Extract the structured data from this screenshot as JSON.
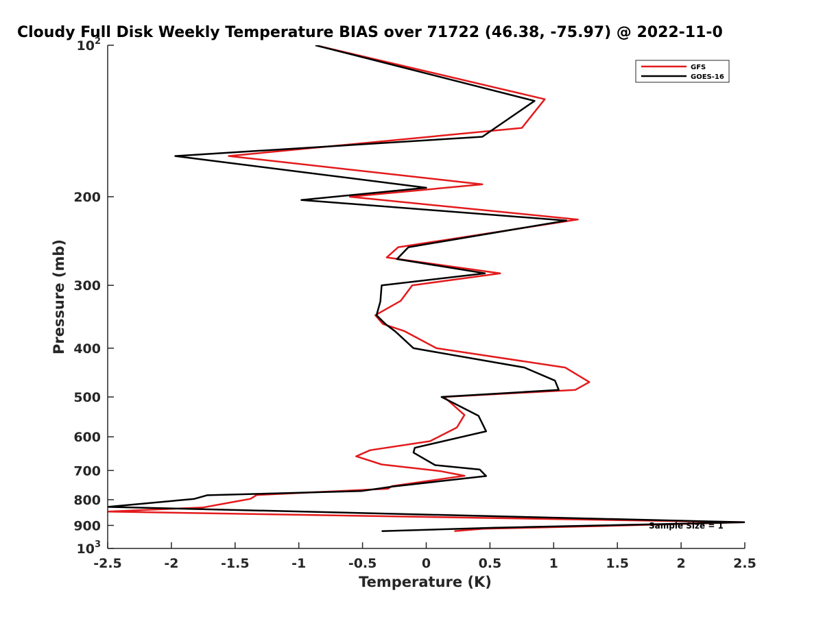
{
  "chart_data": {
    "type": "line",
    "title": "Cloudy Full Disk Weekly Temperature BIAS over 71722 (46.38, -75.97) @ 2022-11-0",
    "xlabel": "Temperature (K)",
    "ylabel": "Pressure (mb)",
    "xlim": [
      -2.5,
      2.5
    ],
    "ylim": [
      100,
      1000
    ],
    "yscale": "log",
    "y_reversed": true,
    "grid": false,
    "legend_position": "top-right",
    "x_ticks": [
      "-2.5",
      "-2",
      "-1.5",
      "-1",
      "-0.5",
      "0",
      "0.5",
      "1",
      "1.5",
      "2",
      "2.5"
    ],
    "y_ticks": [
      {
        "value": 100,
        "base": "10",
        "exp": "2"
      },
      {
        "value": 200,
        "label": "200"
      },
      {
        "value": 300,
        "label": "300"
      },
      {
        "value": 400,
        "label": "400"
      },
      {
        "value": 500,
        "label": "500"
      },
      {
        "value": 600,
        "label": "600"
      },
      {
        "value": 700,
        "label": "700"
      },
      {
        "value": 800,
        "label": "800"
      },
      {
        "value": 900,
        "label": "900"
      },
      {
        "value": 1000,
        "base": "10",
        "exp": "3"
      }
    ],
    "annotation": "Sample Size = 1",
    "series": [
      {
        "name": "GFS",
        "color": "#e31a1c",
        "points": [
          [
            -0.87,
            100
          ],
          [
            0.93,
            128
          ],
          [
            0.75,
            146
          ],
          [
            -1.55,
            166
          ],
          [
            0.44,
            189
          ],
          [
            -0.6,
            200
          ],
          [
            1.19,
            222
          ],
          [
            -0.22,
            252
          ],
          [
            -0.31,
            264
          ],
          [
            0.58,
            284
          ],
          [
            -0.11,
            300
          ],
          [
            -0.2,
            322
          ],
          [
            -0.4,
            344
          ],
          [
            -0.34,
            358
          ],
          [
            -0.17,
            370
          ],
          [
            0.08,
            400
          ],
          [
            1.09,
            437
          ],
          [
            1.28,
            467
          ],
          [
            1.17,
            484
          ],
          [
            0.14,
            500
          ],
          [
            0.3,
            543
          ],
          [
            0.24,
            575
          ],
          [
            0.03,
            612
          ],
          [
            -0.44,
            638
          ],
          [
            -0.55,
            656
          ],
          [
            -0.35,
            681
          ],
          [
            0.11,
            702
          ],
          [
            0.3,
            717
          ],
          [
            -0.27,
            752
          ],
          [
            -0.3,
            761
          ],
          [
            -1.33,
            783
          ],
          [
            -1.38,
            797
          ],
          [
            -1.52,
            809
          ],
          [
            -1.75,
            829
          ],
          [
            -2.5,
            845
          ],
          [
            2.5,
            887
          ],
          [
            1.42,
            902
          ],
          [
            0.45,
            914
          ],
          [
            0.22,
            924
          ]
        ]
      },
      {
        "name": "GOES-16",
        "color": "#000000",
        "points": [
          [
            -0.87,
            100
          ],
          [
            0.85,
            129
          ],
          [
            0.44,
            152
          ],
          [
            -1.97,
            166
          ],
          [
            0.0,
            192
          ],
          [
            -0.98,
            203
          ],
          [
            1.1,
            223
          ],
          [
            -0.14,
            252
          ],
          [
            -0.23,
            266
          ],
          [
            0.46,
            284
          ],
          [
            -0.35,
            300
          ],
          [
            -0.36,
            323
          ],
          [
            -0.39,
            344
          ],
          [
            -0.32,
            358
          ],
          [
            -0.24,
            371
          ],
          [
            -0.1,
            400
          ],
          [
            0.77,
            437
          ],
          [
            1.01,
            464
          ],
          [
            1.04,
            484
          ],
          [
            0.12,
            500
          ],
          [
            0.41,
            545
          ],
          [
            0.47,
            585
          ],
          [
            -0.09,
            631
          ],
          [
            -0.1,
            645
          ],
          [
            0.07,
            683
          ],
          [
            0.42,
            697
          ],
          [
            0.47,
            718
          ],
          [
            -0.26,
            753
          ],
          [
            -0.51,
            769
          ],
          [
            -1.72,
            784
          ],
          [
            -1.82,
            797
          ],
          [
            -2.5,
            827
          ],
          [
            2.5,
            887
          ],
          [
            0.52,
            910
          ],
          [
            -0.35,
            924
          ]
        ]
      }
    ]
  }
}
